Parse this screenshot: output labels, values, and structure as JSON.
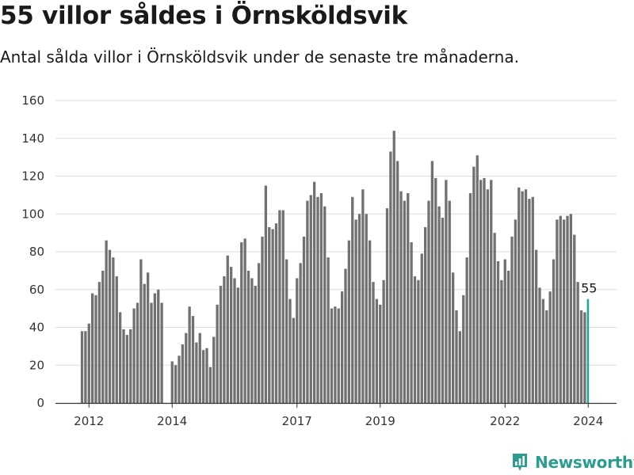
{
  "title": "55 villor såldes i Örnsköldsvik",
  "subtitle": "Antal sålda villor i Örnsköldsvik under de senaste tre månaderna.",
  "brand": {
    "name": "Newsworthy",
    "icon": "newsworthy-logo-icon",
    "color": "#2a9d8f"
  },
  "colors": {
    "bar": "#717073",
    "highlight": "#26a69a",
    "grid": "#dddddd",
    "axis": "#333333"
  },
  "chart_data": {
    "type": "bar",
    "title": "",
    "xlabel": "",
    "ylabel": "",
    "ylim": [
      0,
      160
    ],
    "yticks": [
      0,
      20,
      40,
      60,
      80,
      100,
      120,
      140,
      160
    ],
    "grid": true,
    "x_start": "2011-11",
    "xticks": [
      {
        "label": "2012",
        "month": "2012-01"
      },
      {
        "label": "2014",
        "month": "2014-01"
      },
      {
        "label": "2017",
        "month": "2017-01"
      },
      {
        "label": "2019",
        "month": "2019-01"
      },
      {
        "label": "2022",
        "month": "2022-01"
      },
      {
        "label": "2024",
        "month": "2024-01"
      }
    ],
    "values": [
      38,
      38,
      42,
      58,
      57,
      64,
      70,
      86,
      81,
      77,
      67,
      48,
      39,
      36,
      39,
      50,
      53,
      76,
      63,
      69,
      53,
      58,
      60,
      53,
      null,
      null,
      22,
      20,
      25,
      31,
      37,
      51,
      46,
      32,
      37,
      28,
      29,
      19,
      35,
      52,
      62,
      67,
      78,
      72,
      66,
      61,
      85,
      87,
      70,
      66,
      62,
      74,
      88,
      115,
      93,
      92,
      95,
      102,
      102,
      76,
      55,
      45,
      66,
      74,
      88,
      107,
      110,
      117,
      109,
      111,
      104,
      77,
      50,
      51,
      50,
      59,
      71,
      86,
      109,
      97,
      100,
      113,
      100,
      86,
      64,
      55,
      52,
      65,
      103,
      133,
      144,
      128,
      112,
      107,
      111,
      85,
      67,
      65,
      79,
      93,
      107,
      128,
      119,
      104,
      98,
      118,
      107,
      69,
      49,
      38,
      57,
      77,
      111,
      125,
      131,
      118,
      119,
      113,
      118,
      90,
      75,
      65,
      76,
      70,
      88,
      97,
      114,
      112,
      113,
      108,
      109,
      81,
      61,
      55,
      49,
      59,
      76,
      97,
      99,
      97,
      99,
      100,
      89,
      64,
      49,
      48,
      55
    ],
    "highlight": {
      "label": "55",
      "value": 55
    }
  }
}
